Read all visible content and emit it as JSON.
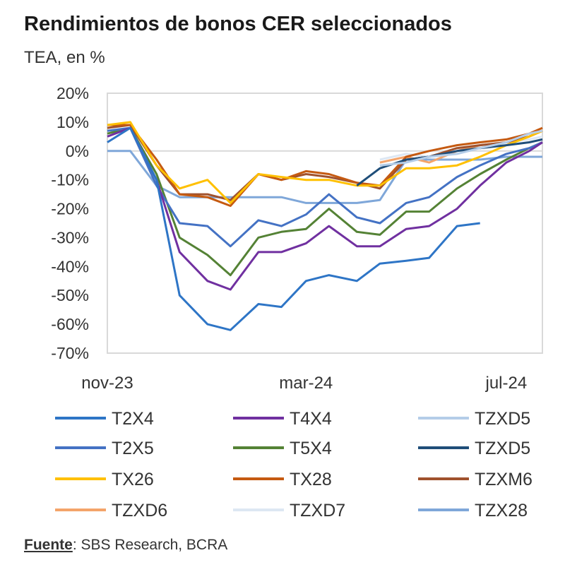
{
  "chart_data": {
    "type": "line",
    "title": "Rendimientos de bonos CER seleccionados",
    "subtitle": "TEA, en %",
    "ylim": [
      -70,
      20
    ],
    "yticks": [
      "20%",
      "10%",
      "0%",
      "-10%",
      "-20%",
      "-30%",
      "-40%",
      "-50%",
      "-60%",
      "-70%"
    ],
    "xticks": [
      {
        "label": "nov-23",
        "date": "2023-11-01"
      },
      {
        "label": "mar-24",
        "date": "2024-03-01"
      },
      {
        "label": "jul-24",
        "date": "2024-07-01"
      }
    ],
    "xlim": [
      "2023-11-01",
      "2024-07-23"
    ],
    "grid": false,
    "legend": "bottom",
    "x": [
      "2023-11-01",
      "2023-11-15",
      "2023-12-01",
      "2023-12-15",
      "2024-01-01",
      "2024-01-15",
      "2024-02-01",
      "2024-02-15",
      "2024-03-01",
      "2024-03-15",
      "2024-04-01",
      "2024-04-15",
      "2024-05-01",
      "2024-05-15",
      "2024-06-01",
      "2024-06-15",
      "2024-07-01",
      "2024-07-15",
      "2024-07-23"
    ],
    "series": [
      {
        "name": "T2X4",
        "color": "#2e75c6",
        "values": [
          3,
          8,
          -10,
          -50,
          -60,
          -62,
          -53,
          -54,
          -45,
          -43,
          -45,
          -39,
          -38,
          -37,
          -26,
          -25,
          null,
          null,
          null
        ]
      },
      {
        "name": "T4X4",
        "color": "#7030a0",
        "values": [
          5,
          8,
          -10,
          -35,
          -45,
          -48,
          -35,
          -35,
          -32,
          -26,
          -33,
          -33,
          -27,
          -26,
          -20,
          -12,
          -4,
          0,
          3
        ]
      },
      {
        "name": "TZXD5",
        "color": "#b4cde8",
        "values": [
          null,
          null,
          null,
          null,
          null,
          null,
          null,
          null,
          null,
          null,
          null,
          -5,
          -4,
          -2,
          -1,
          1,
          3,
          6,
          7
        ]
      },
      {
        "name": "T2X5",
        "color": "#4472c4",
        "values": [
          7,
          8,
          -12,
          -25,
          -26,
          -33,
          -24,
          -26,
          -22,
          -15,
          -23,
          -25,
          -18,
          -16,
          -9,
          -5,
          -1,
          1,
          3
        ]
      },
      {
        "name": "T5X4",
        "color": "#548235",
        "values": [
          6,
          8,
          -8,
          -30,
          -36,
          -43,
          -30,
          -28,
          -27,
          -20,
          -28,
          -29,
          -21,
          -21,
          -13,
          -8,
          -3,
          1,
          3
        ]
      },
      {
        "name": "TZXD5",
        "color": "#1f4e79",
        "values": [
          null,
          null,
          null,
          null,
          null,
          null,
          null,
          null,
          null,
          null,
          -12,
          -6,
          -3,
          -2,
          0,
          1,
          2,
          3,
          4
        ]
      },
      {
        "name": "TX26",
        "color": "#ffc000",
        "values": [
          9,
          10,
          -5,
          -13,
          -10,
          -18,
          -8,
          -9,
          -10,
          -10,
          -12,
          -12,
          -6,
          -6,
          -5,
          -2,
          2,
          5,
          7
        ]
      },
      {
        "name": "TX28",
        "color": "#c55a11",
        "values": [
          9,
          9,
          -3,
          -15,
          -16,
          -19,
          -8,
          -10,
          -7,
          -8,
          -11,
          -12,
          -2,
          0,
          2,
          3,
          4,
          6,
          8
        ]
      },
      {
        "name": "TZXM6",
        "color": "#a0522d",
        "values": [
          8,
          9,
          -5,
          -15,
          -15,
          -17,
          -8,
          -10,
          -8,
          -9,
          -11,
          -13,
          -3,
          -2,
          1,
          2,
          3,
          5,
          7
        ]
      },
      {
        "name": "TZXD6",
        "color": "#f4a46a",
        "values": [
          null,
          null,
          null,
          null,
          null,
          null,
          null,
          null,
          null,
          null,
          null,
          -4,
          -2,
          -4,
          0,
          2,
          3,
          5,
          7
        ]
      },
      {
        "name": "TZXD7",
        "color": "#dde7f3",
        "values": [
          null,
          null,
          null,
          null,
          null,
          null,
          null,
          null,
          null,
          null,
          null,
          -3,
          -1,
          -2,
          0,
          1,
          3,
          4,
          5
        ]
      },
      {
        "name": "TZX28",
        "color": "#7fa7d9",
        "values": [
          0,
          0,
          -12,
          -16,
          -16,
          -16,
          -16,
          -16,
          -18,
          -18,
          -18,
          -17,
          -3,
          -3,
          -3,
          -3,
          -2,
          -2,
          -2
        ]
      }
    ]
  },
  "source": {
    "label": "Fuente",
    "text": ": SBS Research, BCRA"
  }
}
